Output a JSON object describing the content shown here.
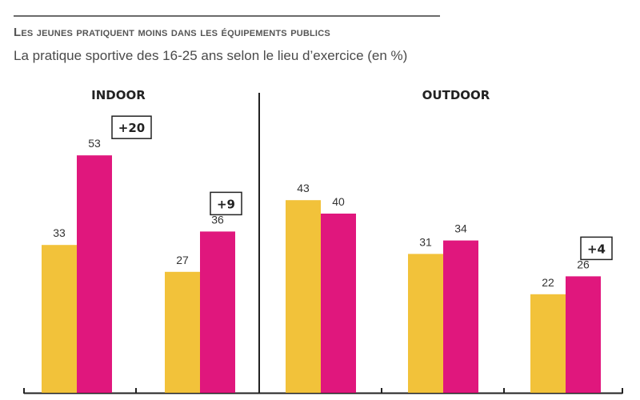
{
  "header": {
    "title": "Les jeunes pratiquent moins dans les équipements publics",
    "subtitle": "La pratique sportive des 16-25 ans selon le lieu d’exercice (en %)"
  },
  "chart_data": {
    "type": "bar",
    "title": "Les jeunes pratiquent moins dans les équipements publics",
    "subtitle": "La pratique sportive des 16-25 ans selon le lieu d’exercice (en %)",
    "sections": [
      "INDOOR",
      "OUTDOOR"
    ],
    "ylim": [
      0,
      60
    ],
    "grid": false,
    "colors": {
      "series_1": "#f2c23a",
      "series_2": "#e0177d",
      "divider": "#222222",
      "axis": "#222222"
    },
    "groups": [
      {
        "section": "INDOOR",
        "values": [
          33,
          53
        ],
        "difference": "+20"
      },
      {
        "section": "INDOOR",
        "values": [
          27,
          36
        ],
        "difference": "+9"
      },
      {
        "section": "OUTDOOR",
        "values": [
          43,
          40
        ],
        "difference": ""
      },
      {
        "section": "OUTDOOR",
        "values": [
          31,
          34
        ],
        "difference": ""
      },
      {
        "section": "OUTDOOR",
        "values": [
          22,
          26
        ],
        "difference": "+4"
      }
    ]
  }
}
